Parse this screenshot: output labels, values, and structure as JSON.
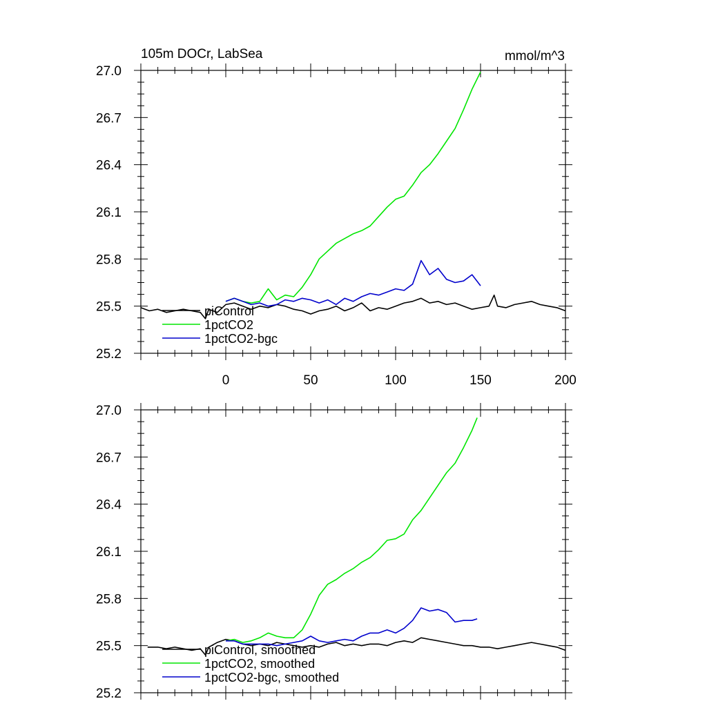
{
  "header": {
    "title": "105m DOCr, LabSea",
    "units": "mmol/m^3"
  },
  "colors": {
    "piControl": "#000000",
    "1pctCO2": "#00e600",
    "1pctCO2-bgc": "#0000cc"
  },
  "chart_data": [
    {
      "type": "line",
      "title": "105m DOCr, LabSea",
      "units_label": "mmol/m^3",
      "xlim": [
        -50,
        200
      ],
      "ylim": [
        25.2,
        27.0
      ],
      "x_ticks": [
        0,
        50,
        100,
        150,
        200
      ],
      "y_ticks": [
        "25.2",
        "25.5",
        "25.8",
        "26.1",
        "26.4",
        "26.7",
        "27.0"
      ],
      "legend_position": "lower-left",
      "series": [
        {
          "name": "piControl",
          "color": "#000000",
          "x": [
            -50,
            -45,
            -40,
            -35,
            -30,
            -25,
            -20,
            -15,
            -12,
            -10,
            -5,
            0,
            5,
            10,
            15,
            20,
            25,
            30,
            35,
            40,
            45,
            50,
            55,
            60,
            65,
            70,
            75,
            80,
            85,
            90,
            95,
            100,
            105,
            110,
            115,
            120,
            125,
            130,
            135,
            140,
            145,
            150,
            155,
            158,
            160,
            165,
            170,
            175,
            180,
            185,
            190,
            195,
            200
          ],
          "y": [
            25.49,
            25.47,
            25.48,
            25.46,
            25.47,
            25.48,
            25.47,
            25.46,
            25.42,
            25.48,
            25.46,
            25.51,
            25.52,
            25.5,
            25.48,
            25.5,
            25.49,
            25.51,
            25.5,
            25.48,
            25.47,
            25.45,
            25.47,
            25.48,
            25.5,
            25.47,
            25.49,
            25.52,
            25.47,
            25.49,
            25.48,
            25.5,
            25.52,
            25.53,
            25.55,
            25.52,
            25.53,
            25.51,
            25.52,
            25.5,
            25.48,
            25.49,
            25.5,
            25.57,
            25.5,
            25.49,
            25.51,
            25.52,
            25.53,
            25.51,
            25.5,
            25.49,
            25.47
          ]
        },
        {
          "name": "1pctCO2",
          "color": "#00e600",
          "x": [
            0,
            5,
            10,
            15,
            20,
            25,
            30,
            35,
            40,
            45,
            50,
            55,
            60,
            65,
            70,
            75,
            80,
            85,
            90,
            95,
            100,
            105,
            110,
            115,
            120,
            125,
            130,
            135,
            140,
            145,
            150
          ],
          "y": [
            25.53,
            25.55,
            25.53,
            25.52,
            25.53,
            25.61,
            25.54,
            25.57,
            25.56,
            25.62,
            25.7,
            25.8,
            25.85,
            25.9,
            25.93,
            25.96,
            25.98,
            26.01,
            26.07,
            26.13,
            26.18,
            26.2,
            26.27,
            26.35,
            26.4,
            26.47,
            26.55,
            26.63,
            26.75,
            26.88,
            26.99
          ]
        },
        {
          "name": "1pctCO2-bgc",
          "color": "#0000cc",
          "x": [
            0,
            5,
            10,
            15,
            20,
            25,
            30,
            35,
            40,
            45,
            50,
            55,
            60,
            65,
            70,
            75,
            80,
            85,
            90,
            95,
            100,
            105,
            110,
            115,
            120,
            125,
            130,
            135,
            140,
            145,
            150
          ],
          "y": [
            25.53,
            25.55,
            25.53,
            25.51,
            25.52,
            25.5,
            25.51,
            25.54,
            25.53,
            25.55,
            25.54,
            25.52,
            25.54,
            25.51,
            25.55,
            25.53,
            25.56,
            25.58,
            25.57,
            25.59,
            25.61,
            25.6,
            25.64,
            25.79,
            25.7,
            25.74,
            25.67,
            25.65,
            25.66,
            25.7,
            25.63
          ]
        }
      ]
    },
    {
      "type": "line",
      "xlim": [
        -50,
        200
      ],
      "ylim": [
        25.2,
        27.0
      ],
      "y_ticks": [
        "25.2",
        "25.5",
        "25.8",
        "26.1",
        "26.4",
        "26.7",
        "27.0"
      ],
      "legend_position": "lower-left",
      "series": [
        {
          "name": "piControl, smoothed",
          "color": "#000000",
          "x": [
            -46,
            -40,
            -35,
            -30,
            -25,
            -20,
            -15,
            -12,
            -10,
            -5,
            0,
            5,
            10,
            15,
            20,
            25,
            30,
            35,
            40,
            45,
            50,
            55,
            60,
            65,
            70,
            75,
            80,
            85,
            90,
            95,
            100,
            105,
            110,
            115,
            120,
            125,
            130,
            135,
            140,
            145,
            150,
            155,
            160,
            165,
            170,
            175,
            180,
            185,
            190,
            195,
            200
          ],
          "y": [
            25.49,
            25.49,
            25.48,
            25.49,
            25.48,
            25.47,
            25.48,
            25.44,
            25.49,
            25.52,
            25.54,
            25.53,
            25.51,
            25.5,
            25.51,
            25.5,
            25.52,
            25.51,
            25.5,
            25.49,
            25.5,
            25.49,
            25.51,
            25.52,
            25.5,
            25.51,
            25.5,
            25.51,
            25.51,
            25.5,
            25.52,
            25.53,
            25.52,
            25.55,
            25.54,
            25.53,
            25.52,
            25.51,
            25.5,
            25.5,
            25.49,
            25.49,
            25.48,
            25.49,
            25.5,
            25.51,
            25.52,
            25.51,
            25.5,
            25.49,
            25.47
          ]
        },
        {
          "name": "1pctCO2, smoothed",
          "color": "#00e600",
          "x": [
            0,
            5,
            10,
            15,
            20,
            25,
            30,
            35,
            40,
            45,
            50,
            55,
            60,
            65,
            70,
            75,
            80,
            85,
            90,
            95,
            100,
            105,
            110,
            115,
            120,
            125,
            130,
            135,
            140,
            145,
            148
          ],
          "y": [
            25.53,
            25.54,
            25.52,
            25.53,
            25.55,
            25.58,
            25.56,
            25.55,
            25.55,
            25.6,
            25.7,
            25.82,
            25.89,
            25.92,
            25.96,
            25.99,
            26.03,
            26.06,
            26.11,
            26.17,
            26.18,
            26.21,
            26.3,
            26.36,
            26.44,
            26.52,
            26.6,
            26.66,
            26.76,
            26.87,
            26.95
          ]
        },
        {
          "name": "1pctCO2-bgc, smoothed",
          "color": "#0000cc",
          "x": [
            0,
            5,
            10,
            15,
            20,
            25,
            30,
            35,
            40,
            45,
            50,
            55,
            60,
            65,
            70,
            75,
            80,
            85,
            90,
            95,
            100,
            105,
            110,
            115,
            120,
            125,
            130,
            135,
            140,
            145,
            148
          ],
          "y": [
            25.53,
            25.53,
            25.51,
            25.51,
            25.51,
            25.51,
            25.5,
            25.51,
            25.52,
            25.53,
            25.56,
            25.53,
            25.52,
            25.53,
            25.54,
            25.53,
            25.56,
            25.58,
            25.58,
            25.6,
            25.58,
            25.61,
            25.66,
            25.74,
            25.72,
            25.73,
            25.71,
            25.65,
            25.66,
            25.66,
            25.67
          ]
        }
      ]
    }
  ]
}
